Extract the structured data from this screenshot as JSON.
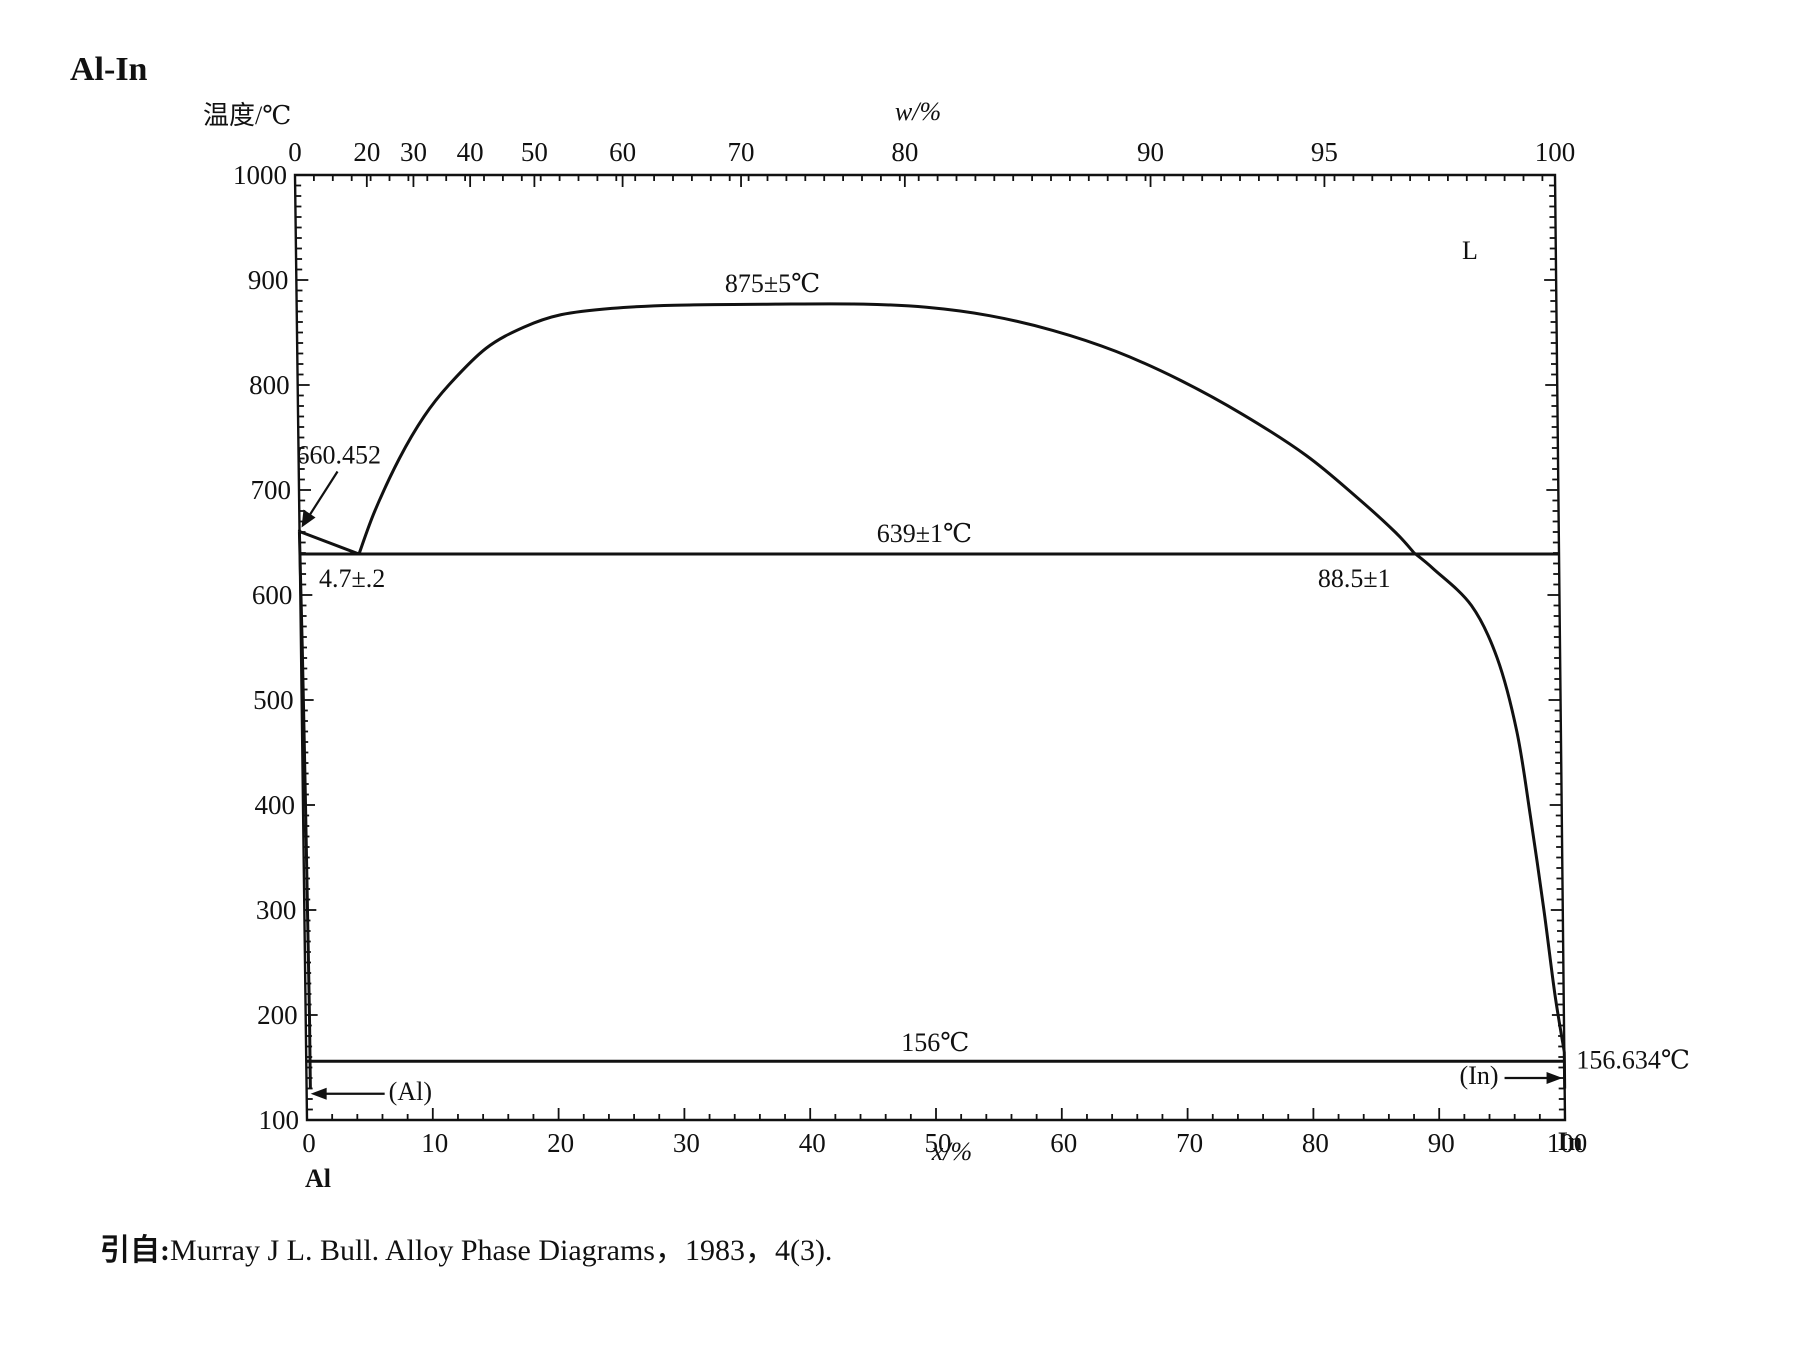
{
  "chart_data": {
    "type": "line",
    "title": "Al-In",
    "ylabel": "温度/℃",
    "xlabel_bottom": "x/%",
    "xlabel_top": "w/%",
    "ylim": [
      100,
      1000
    ],
    "xlim": [
      0,
      100
    ],
    "y_ticks": [
      100,
      200,
      300,
      400,
      500,
      600,
      700,
      800,
      900,
      1000
    ],
    "x_ticks_bottom": [
      0,
      10,
      20,
      30,
      40,
      50,
      60,
      70,
      80,
      90,
      100
    ],
    "x_ticks_top": [
      {
        "label": "0",
        "x": 0
      },
      {
        "label": "20",
        "x": 5.7
      },
      {
        "label": "30",
        "x": 9.4
      },
      {
        "label": "40",
        "x": 13.9
      },
      {
        "label": "50",
        "x": 19.0
      },
      {
        "label": "60",
        "x": 26.0
      },
      {
        "label": "70",
        "x": 35.4
      },
      {
        "label": "80",
        "x": 48.4
      },
      {
        "label": "90",
        "x": 67.9
      },
      {
        "label": "95",
        "x": 81.7
      },
      {
        "label": "100",
        "x": 100
      }
    ],
    "end_labels": {
      "left": "Al",
      "right": "In"
    },
    "series": [
      {
        "points": [
          [
            0,
            660.452
          ],
          [
            4.7,
            639
          ]
        ]
      },
      {
        "points": [
          [
            4.7,
            639
          ],
          [
            6,
            680
          ],
          [
            8,
            730
          ],
          [
            10,
            770
          ],
          [
            12,
            800
          ],
          [
            15,
            835
          ],
          [
            18,
            855
          ],
          [
            21,
            867
          ],
          [
            25,
            873
          ],
          [
            30,
            876
          ],
          [
            38,
            877
          ],
          [
            45,
            877
          ],
          [
            50,
            874
          ],
          [
            55,
            866
          ],
          [
            60,
            852
          ],
          [
            65,
            832
          ],
          [
            70,
            805
          ],
          [
            75,
            772
          ],
          [
            80,
            733
          ],
          [
            84,
            693
          ],
          [
            87,
            660
          ],
          [
            88.5,
            640
          ]
        ]
      },
      {
        "points": [
          [
            88.5,
            640
          ],
          [
            90,
            625
          ],
          [
            93,
            590
          ],
          [
            95,
            540
          ],
          [
            96.5,
            470
          ],
          [
            97.5,
            390
          ],
          [
            98.5,
            300
          ],
          [
            99.3,
            220
          ],
          [
            100,
            165
          ]
        ]
      },
      {
        "points": [
          [
            0,
            660.452
          ],
          [
            0,
            650
          ],
          [
            0.1,
            550
          ],
          [
            0.2,
            400
          ],
          [
            0.25,
            300
          ],
          [
            0.3,
            200
          ],
          [
            0.3,
            130
          ]
        ]
      },
      {
        "points": [
          [
            100,
            165
          ],
          [
            100,
            156.634
          ],
          [
            100,
            130
          ]
        ]
      },
      {
        "points": [
          [
            0,
            639
          ],
          [
            100,
            639
          ]
        ]
      },
      {
        "points": [
          [
            0,
            156
          ],
          [
            100,
            156
          ]
        ]
      }
    ],
    "annotations": [
      {
        "text": "660.452",
        "x": 0,
        "y": 660.452
      },
      {
        "text": "4.7±.2",
        "x": 4.7,
        "y": 639
      },
      {
        "text": "875±5℃",
        "x": 40,
        "y": 877
      },
      {
        "text": "639±1℃",
        "x": 50,
        "y": 639
      },
      {
        "text": "88.5±1",
        "x": 88.5,
        "y": 639
      },
      {
        "text": "156℃",
        "x": 50,
        "y": 156
      },
      {
        "text": "156.634℃",
        "x": 100,
        "y": 156.634
      },
      {
        "text": "(Al)",
        "x": 0,
        "y": 125
      },
      {
        "text": "(In)",
        "x": 100,
        "y": 140
      },
      {
        "text": "L",
        "x": 90,
        "y": 920
      }
    ]
  },
  "citation": {
    "prefix": "引自:",
    "text": "Murray J L.  Bull.  Alloy Phase Diagrams，1983，4(3)."
  }
}
